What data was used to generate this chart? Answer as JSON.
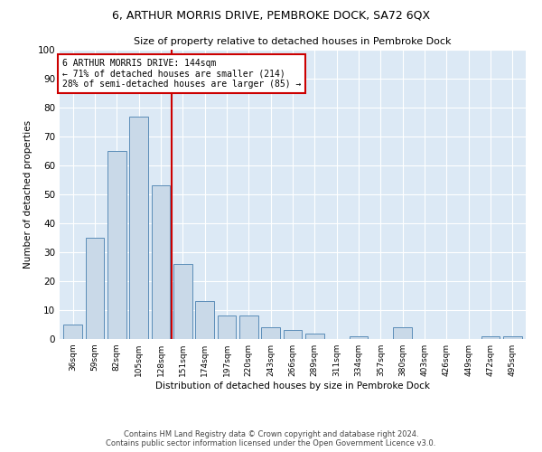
{
  "title": "6, ARTHUR MORRIS DRIVE, PEMBROKE DOCK, SA72 6QX",
  "subtitle": "Size of property relative to detached houses in Pembroke Dock",
  "xlabel": "Distribution of detached houses by size in Pembroke Dock",
  "ylabel": "Number of detached properties",
  "bar_categories": [
    "36sqm",
    "59sqm",
    "82sqm",
    "105sqm",
    "128sqm",
    "151sqm",
    "174sqm",
    "197sqm",
    "220sqm",
    "243sqm",
    "266sqm",
    "289sqm",
    "311sqm",
    "334sqm",
    "357sqm",
    "380sqm",
    "403sqm",
    "426sqm",
    "449sqm",
    "472sqm",
    "495sqm"
  ],
  "bar_values": [
    5,
    35,
    65,
    77,
    53,
    26,
    13,
    8,
    8,
    4,
    3,
    2,
    0,
    1,
    0,
    4,
    0,
    0,
    0,
    1,
    1
  ],
  "bar_color": "#c9d9e8",
  "bar_edge_color": "#5b8db8",
  "vline_x": 4.5,
  "annotation_text": "6 ARTHUR MORRIS DRIVE: 144sqm\n← 71% of detached houses are smaller (214)\n28% of semi-detached houses are larger (85) →",
  "annotation_box_color": "#ffffff",
  "annotation_box_edge": "#cc0000",
  "vline_color": "#cc0000",
  "ylim": [
    0,
    100
  ],
  "yticks": [
    0,
    10,
    20,
    30,
    40,
    50,
    60,
    70,
    80,
    90,
    100
  ],
  "plot_background": "#dce9f5",
  "footer_line1": "Contains HM Land Registry data © Crown copyright and database right 2024.",
  "footer_line2": "Contains public sector information licensed under the Open Government Licence v3.0."
}
